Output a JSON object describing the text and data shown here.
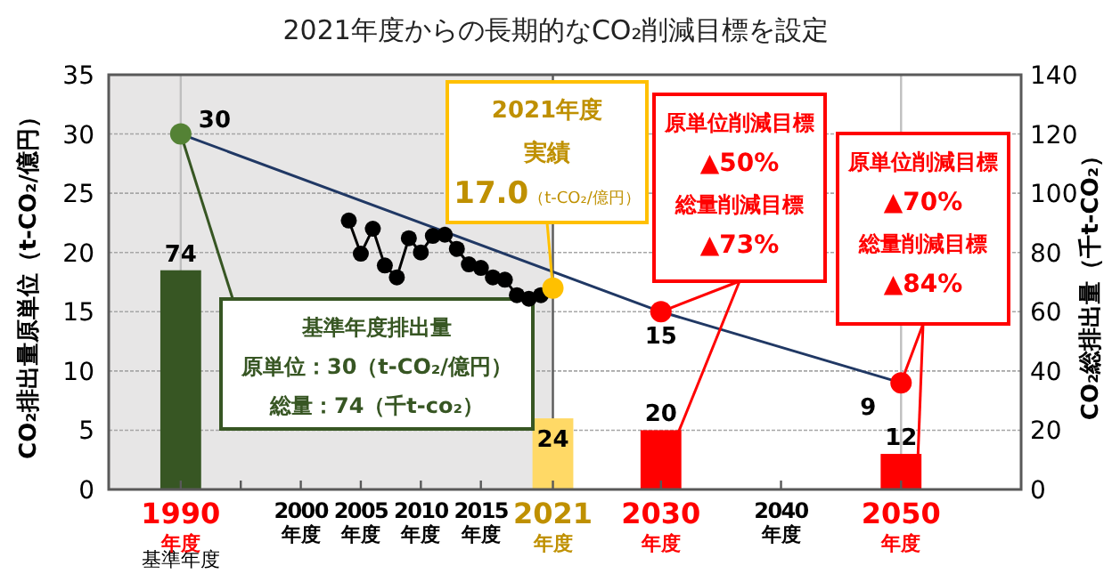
{
  "chart_data": {
    "type": "line",
    "title": "2021年度からの長期的なCO₂削減目標を設定",
    "ylabel": "CO₂排出量原単位（t-CO₂/億円）",
    "y2label": "CO₂総排出量（千t-CO₂）",
    "xlim": [
      1984,
      2060
    ],
    "ylim": [
      0,
      35
    ],
    "yticks": [
      0,
      5,
      10,
      15,
      20,
      25,
      30,
      35
    ],
    "y2lim": [
      0,
      140
    ],
    "y2ticks": [
      0,
      20,
      40,
      60,
      80,
      100,
      120,
      140
    ],
    "xticks": [
      {
        "value": 1990,
        "label": "1990\n年度"
      },
      {
        "value": 1995,
        "label": null
      },
      {
        "value": 2000,
        "label": "2000\n年度"
      },
      {
        "value": 2005,
        "label": "2005\n年度"
      },
      {
        "value": 2010,
        "label": "2010\n年度"
      },
      {
        "value": 2015,
        "label": "2015\n年度"
      },
      {
        "value": 2021,
        "label": "2021\n年度"
      },
      {
        "value": 2030,
        "label": "2030\n年度"
      },
      {
        "value": 2040,
        "label": "2040\n年度"
      },
      {
        "value": 2050,
        "label": "2050\n年度"
      }
    ],
    "grid": "y",
    "bands": [
      {
        "axis": "x",
        "from": 1984,
        "to": 2021,
        "color": "#e7e6e6"
      }
    ],
    "ref_lines": [
      {
        "axis": "x",
        "value": 1990,
        "color": "#bfbfbf"
      },
      {
        "axis": "x",
        "value": 2021,
        "color": "#595959"
      },
      {
        "axis": "x",
        "value": 2050,
        "color": "#bfbfbf"
      }
    ],
    "series": [
      {
        "type": "bar",
        "axis": "y2",
        "x": [
          1990,
          2021,
          2030,
          2050
        ],
        "values": [
          74,
          24,
          20,
          12
        ],
        "colors": [
          "#375623",
          "#ffd966",
          "#ff0000",
          "#ff0000"
        ],
        "value_labels": [
          "74",
          "24",
          "20",
          "12"
        ]
      },
      {
        "color": "#203864",
        "marker": "none",
        "x": [
          1990,
          2030,
          2050
        ],
        "values": [
          30,
          15,
          9
        ]
      },
      {
        "color": "#000000",
        "marker": "circle",
        "x": [
          2004,
          2005,
          2006,
          2007,
          2008,
          2009,
          2010,
          2011,
          2012,
          2013,
          2014,
          2015,
          2016,
          2017,
          2018,
          2019,
          2020
        ],
        "values": [
          22.7,
          19.9,
          22.0,
          18.9,
          17.9,
          21.2,
          20.0,
          21.4,
          21.5,
          20.3,
          19.0,
          18.7,
          17.9,
          17.7,
          16.4,
          16.1,
          16.4
        ]
      },
      {
        "type": "scatter",
        "marker": "circle",
        "x": [
          1990,
          2021,
          2030,
          2050
        ],
        "values": [
          30,
          17.0,
          15,
          9
        ],
        "colors": [
          "#548235",
          "#ffc000",
          "#ff0000",
          "#ff0000"
        ],
        "value_labels": [
          "30",
          null,
          "15",
          "9"
        ]
      }
    ],
    "annotations": [
      "基準年度排出量",
      "原単位：30（t-CO₂/億円）",
      {
        "text": "総量：74（千t-co₂）",
        "x": 1990,
        "y": 30
      },
      "2021年度",
      "実績",
      {
        "text": "17.0（t-CO₂/億円）",
        "x": 2021,
        "y": 17.0
      },
      "原単位削減目標",
      "▲50%",
      "総量削減目標",
      {
        "text": "▲73%",
        "x": 2030,
        "y": 15
      },
      "原単位削減目標",
      "▲70%",
      "総量削減目標",
      {
        "text": "▲84%",
        "x": 2050,
        "y": 9
      },
      "基準年度"
    ]
  }
}
